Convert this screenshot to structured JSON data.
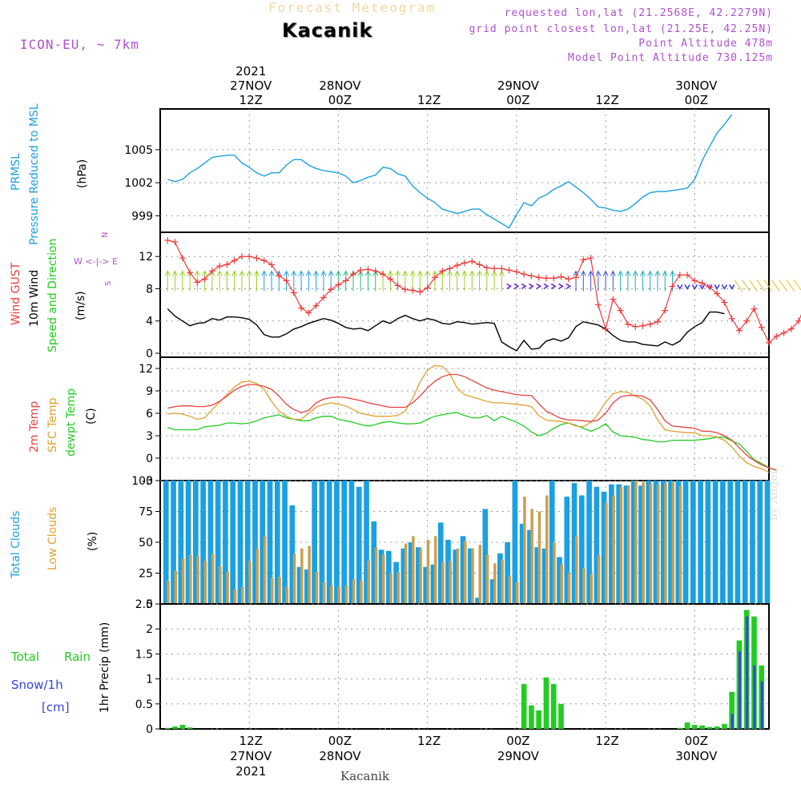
{
  "header": {
    "title": "Forecast Meteogram",
    "location": "Kacanik",
    "model": "ICON-EU, ~ 7km",
    "requested": "requested lon,lat (21.2568E, 42.2279N)",
    "grid_point": "grid point closest lon,lat (21.25E, 42.25N)",
    "point_altitude": "Point Altitude 478m",
    "model_altitude": "Model Point Altitude 730.125m"
  },
  "footer": {
    "location": "Kacanik",
    "credit": "by Angel"
  },
  "colors": {
    "pressure": "#1ba0e2",
    "gust": "#ee3b3b",
    "wind": "#000000",
    "temp": "#e84040",
    "sfc": "#e0a030",
    "dewpt": "#22cc22",
    "total_clouds": "#1ba0e2",
    "low_clouds": "#c8a050",
    "rain": "#22cc22",
    "snow": "#3344dd",
    "direction_label": "#b050d0"
  },
  "time_axis": {
    "top_labels": [
      {
        "h": 12,
        "lines": [
          "2021",
          "27NOV",
          "12Z"
        ]
      },
      {
        "h": 24,
        "lines": [
          "28NOV",
          "00Z"
        ]
      },
      {
        "h": 36,
        "lines": [
          "12Z"
        ]
      },
      {
        "h": 48,
        "lines": [
          "29NOV",
          "00Z"
        ]
      },
      {
        "h": 60,
        "lines": [
          "12Z"
        ]
      },
      {
        "h": 72,
        "lines": [
          "30NOV",
          "00Z"
        ]
      }
    ],
    "bottom_labels": [
      {
        "h": 12,
        "lines": [
          "12Z",
          "27NOV",
          "2021"
        ]
      },
      {
        "h": 24,
        "lines": [
          "00Z",
          "28NOV"
        ]
      },
      {
        "h": 36,
        "lines": [
          "12Z"
        ]
      },
      {
        "h": 48,
        "lines": [
          "00Z",
          "29NOV"
        ]
      },
      {
        "h": 60,
        "lines": [
          "12Z"
        ]
      },
      {
        "h": 72,
        "lines": [
          "00Z",
          "30NOV"
        ]
      }
    ]
  },
  "panel_labels": {
    "pressure": {
      "line1": "PRMSL",
      "line2": "Pressure Reduced to MSL",
      "unit": "(hPa)"
    },
    "wind": {
      "gust": "Wind GUST",
      "wind": "10m Wind",
      "dir": "Speed and Direction",
      "unit": "(m/s)",
      "compass_n": "N",
      "compass_s": "S",
      "compass_we": "W <-|-> E"
    },
    "temp": {
      "t2m": "2m Temp",
      "sfc": "SFC Temp",
      "dewpt": "dewpt Temp",
      "unit": "(C)"
    },
    "clouds": {
      "total": "Total Clouds",
      "low": "Low Clouds",
      "unit": "(%)"
    },
    "precip": {
      "total": "Total",
      "rain": "Rain",
      "snow": "Snow/1h",
      "cm": "[cm]",
      "axis": "1hr Precip (mm)"
    }
  },
  "chart_data": [
    {
      "type": "line",
      "name": "pressure",
      "ylim": [
        997.5,
        1008.7
      ],
      "yticks": [
        999,
        1002,
        1005
      ],
      "x_hours_start": 1,
      "values": [
        1002.3,
        1002.1,
        1002.3,
        1002.9,
        1003.3,
        1003.8,
        1004.3,
        1004.4,
        1004.5,
        1004.5,
        1003.8,
        1003.4,
        1002.9,
        1002.6,
        1002.9,
        1002.9,
        1003.6,
        1004.1,
        1004.1,
        1003.6,
        1003.3,
        1003.1,
        1003.0,
        1002.9,
        1002.6,
        1002.0,
        1002.2,
        1002.5,
        1002.7,
        1003.4,
        1003.3,
        1002.8,
        1002.6,
        1001.7,
        1001.1,
        1000.6,
        1000.2,
        999.6,
        999.4,
        999.2,
        999.4,
        999.6,
        999.6,
        999.1,
        998.7,
        998.3,
        997.9,
        999.1,
        1000.2,
        999.9,
        1000.6,
        1000.9,
        1001.4,
        1001.7,
        1002.1,
        1001.6,
        1001.1,
        1000.5,
        999.8,
        999.7,
        999.5,
        999.4,
        999.6,
        1000.1,
        1000.7,
        1001.1,
        1001.2,
        1001.2,
        1001.3,
        1001.4,
        1001.5,
        1002.3,
        1004.0,
        1005.3,
        1006.5,
        1007.3,
        1008.2
      ]
    },
    {
      "type": "line",
      "name": "wind",
      "ylim": [
        -0.5,
        15.0
      ],
      "yticks": [
        0,
        4,
        8,
        12
      ],
      "x_hours_start": 1,
      "gust": [
        14.0,
        13.8,
        11.8,
        10.0,
        8.8,
        9.2,
        10.2,
        10.8,
        11.0,
        11.5,
        12.0,
        12.0,
        11.8,
        11.5,
        11.0,
        9.6,
        9.0,
        7.5,
        5.6,
        5.0,
        5.9,
        6.9,
        7.9,
        8.5,
        9.0,
        9.8,
        10.3,
        10.4,
        10.2,
        9.8,
        9.2,
        8.4,
        7.9,
        7.8,
        7.6,
        8.1,
        9.4,
        10.2,
        10.5,
        10.9,
        11.2,
        11.4,
        11.0,
        10.6,
        10.5,
        10.5,
        10.3,
        10.1,
        9.8,
        9.6,
        9.4,
        9.3,
        9.3,
        9.5,
        9.2,
        9.4,
        11.6,
        11.8,
        6.0,
        3.0,
        6.7,
        5.3,
        3.6,
        3.3,
        3.4,
        3.6,
        3.9,
        5.3,
        8.3,
        9.7,
        9.7,
        9.0,
        8.7,
        8.2,
        7.4,
        6.3,
        4.3,
        2.8,
        4.0,
        5.5,
        3.2,
        1.3,
        2.1,
        2.5,
        3.0,
        4.0,
        6.2,
        7.4,
        8.0,
        11.8,
        12.0,
        11.7
      ],
      "wind": [
        5.5,
        4.6,
        4.0,
        3.4,
        3.7,
        3.8,
        4.3,
        4.1,
        4.5,
        4.5,
        4.4,
        4.2,
        3.5,
        2.3,
        2.0,
        2.0,
        2.4,
        3.0,
        3.3,
        3.7,
        4.0,
        4.3,
        4.1,
        3.7,
        3.2,
        3.0,
        3.1,
        2.8,
        3.4,
        4.0,
        3.7,
        4.3,
        4.7,
        4.3,
        4.0,
        4.3,
        4.1,
        3.7,
        3.6,
        3.9,
        3.8,
        3.6,
        3.7,
        3.8,
        3.7,
        1.4,
        0.8,
        0.3,
        1.6,
        0.5,
        0.6,
        1.5,
        1.8,
        1.5,
        1.9,
        3.3,
        3.9,
        3.7,
        3.5,
        3.0,
        2.2,
        1.6,
        1.4,
        1.4,
        1.1,
        1.0,
        0.9,
        1.4,
        1.0,
        1.5,
        2.6,
        3.3,
        3.8,
        5.1,
        5.1,
        4.9
      ],
      "direction_arrows": "yes"
    },
    {
      "type": "line",
      "name": "temperature",
      "ylim": [
        -3,
        13.5
      ],
      "yticks": [
        -3,
        0,
        3,
        6,
        9,
        12
      ],
      "x_hours_start": 1,
      "t2m": [
        6.7,
        6.9,
        7.0,
        7.0,
        6.9,
        6.9,
        7.1,
        7.6,
        8.3,
        9.1,
        9.6,
        9.9,
        9.8,
        9.6,
        9.2,
        8.3,
        7.2,
        6.5,
        6.1,
        6.4,
        7.4,
        7.9,
        8.1,
        8.2,
        8.1,
        7.9,
        7.7,
        7.4,
        7.2,
        7.0,
        6.8,
        6.8,
        6.8,
        7.4,
        8.3,
        9.4,
        10.3,
        10.9,
        11.2,
        11.2,
        10.9,
        10.4,
        9.9,
        9.4,
        9.1,
        8.9,
        8.7,
        8.5,
        8.4,
        8.4,
        7.3,
        6.3,
        5.8,
        5.3,
        5.1,
        5.1,
        5.0,
        4.9,
        5.1,
        6.0,
        7.4,
        8.2,
        8.4,
        8.4,
        8.3,
        7.8,
        6.5,
        5.0,
        4.3,
        4.2,
        4.1,
        4.0,
        3.6,
        3.6,
        3.4,
        3.0,
        2.4,
        1.4,
        0.4,
        -0.3,
        -0.9,
        -1.3,
        -1.6
      ],
      "sfc": [
        5.9,
        6.0,
        5.9,
        5.6,
        5.2,
        5.4,
        6.5,
        7.5,
        8.5,
        9.5,
        10.2,
        10.3,
        10.0,
        9.2,
        7.6,
        6.3,
        5.6,
        5.2,
        5.2,
        6.0,
        6.8,
        7.2,
        7.4,
        7.2,
        7.0,
        6.5,
        6.0,
        5.8,
        5.6,
        5.6,
        5.6,
        5.7,
        6.3,
        8.0,
        10.2,
        11.8,
        12.4,
        12.3,
        11.3,
        9.4,
        8.5,
        8.2,
        7.9,
        7.6,
        7.4,
        7.4,
        7.3,
        7.2,
        7.1,
        6.9,
        5.7,
        5.1,
        5.0,
        4.9,
        4.7,
        4.3,
        4.2,
        4.8,
        5.9,
        7.5,
        8.6,
        8.9,
        8.8,
        8.3,
        7.9,
        7.0,
        5.1,
        3.8,
        3.6,
        3.5,
        3.4,
        3.4,
        3.0,
        3.0,
        2.8,
        2.4,
        1.5,
        0.3,
        -0.6,
        -1.1,
        -1.4,
        -1.9
      ],
      "dewpt": [
        4.1,
        3.8,
        3.8,
        3.8,
        3.8,
        4.2,
        4.3,
        4.4,
        4.7,
        4.7,
        4.6,
        4.7,
        5.0,
        5.4,
        5.6,
        5.8,
        5.4,
        5.2,
        5.0,
        5.0,
        5.4,
        5.6,
        5.6,
        5.2,
        5.0,
        4.8,
        4.5,
        4.3,
        4.5,
        4.8,
        4.9,
        4.7,
        4.6,
        4.6,
        4.7,
        5.2,
        5.6,
        5.8,
        6.0,
        6.1,
        5.7,
        5.4,
        5.4,
        5.7,
        5.0,
        5.6,
        5.2,
        4.8,
        4.3,
        3.5,
        3.0,
        3.3,
        4.0,
        4.5,
        4.7,
        4.4,
        4.0,
        3.6,
        4.0,
        4.6,
        3.5,
        3.0,
        2.9,
        2.8,
        2.5,
        2.4,
        2.2,
        2.2,
        2.4,
        2.4,
        2.4,
        2.4,
        2.5,
        2.6,
        2.8,
        2.8,
        2.3,
        1.9,
        0.9,
        -0.2,
        -0.7,
        -1.3,
        -1.6
      ]
    },
    {
      "type": "bar",
      "name": "clouds",
      "ylim": [
        0,
        100
      ],
      "yticks": [
        0,
        25,
        50,
        75,
        100
      ],
      "x_hours_start": 1,
      "total": [
        100,
        100,
        100,
        100,
        100,
        100,
        100,
        100,
        100,
        100,
        100,
        100,
        100,
        100,
        100,
        100,
        100,
        80,
        30,
        28,
        100,
        100,
        100,
        100,
        100,
        100,
        95,
        100,
        67,
        44,
        43,
        34,
        45,
        50,
        46,
        30,
        32,
        66,
        52,
        44,
        55,
        45,
        5,
        77,
        20,
        41,
        50,
        100,
        65,
        60,
        46,
        45,
        100,
        38,
        87,
        98,
        88,
        100,
        95,
        91,
        97,
        97,
        96,
        100,
        96,
        100,
        100,
        100,
        100,
        100,
        100,
        100,
        100,
        100,
        100,
        100,
        100,
        100,
        100,
        100,
        100,
        100,
        100,
        100,
        100,
        100,
        100,
        100,
        100,
        100,
        100,
        100,
        100,
        100,
        100,
        100,
        100
      ],
      "low": [
        19,
        27,
        37,
        40,
        39,
        35,
        41,
        31,
        26,
        12,
        14,
        35,
        45,
        55,
        21,
        22,
        14,
        41,
        45,
        47,
        26,
        18,
        15,
        14,
        15,
        20,
        19,
        35,
        46,
        40,
        25,
        26,
        49,
        55,
        45,
        52,
        55,
        34,
        35,
        45,
        51,
        45,
        48,
        40,
        33,
        36,
        23,
        18,
        87,
        77,
        75,
        88,
        50,
        32,
        25,
        55,
        29,
        24,
        40,
        82,
        88,
        95,
        96,
        100,
        99,
        98,
        97,
        98,
        99,
        96
      ],
      "low_offset": 0
    },
    {
      "type": "bar",
      "name": "precipitation",
      "ylim": [
        0,
        2.5
      ],
      "yticks": [
        0,
        0.5,
        1,
        1.5,
        2,
        2.5
      ],
      "x_hours_start": 1,
      "rain": [
        0.02,
        0.05,
        0.08,
        0.03,
        0,
        0,
        0,
        0,
        0,
        0,
        0,
        0,
        0,
        0,
        0,
        0,
        0,
        0,
        0,
        0,
        0,
        0,
        0,
        0,
        0,
        0,
        0,
        0,
        0,
        0,
        0,
        0,
        0,
        0,
        0,
        0,
        0,
        0,
        0,
        0,
        0,
        0,
        0,
        0,
        0,
        0,
        0,
        0,
        0.9,
        0.47,
        0.37,
        1.03,
        0.9,
        0.5,
        0,
        0,
        0,
        0,
        0,
        0,
        0,
        0,
        0,
        0,
        0,
        0,
        0,
        0,
        0,
        0.02,
        0.13,
        0.08,
        0.07,
        0.04,
        0.05,
        0.1,
        0.74,
        1.77,
        2.38,
        2.25,
        1.27,
        0
      ],
      "snow": [
        0,
        0,
        0,
        0,
        0,
        0,
        0,
        0,
        0,
        0,
        0,
        0,
        0,
        0,
        0,
        0,
        0,
        0,
        0,
        0,
        0,
        0,
        0,
        0,
        0,
        0,
        0,
        0,
        0,
        0,
        0,
        0,
        0,
        0,
        0,
        0,
        0,
        0,
        0,
        0,
        0,
        0,
        0,
        0,
        0,
        0,
        0,
        0,
        0,
        0,
        0,
        0,
        0,
        0,
        0,
        0,
        0,
        0,
        0,
        0,
        0,
        0,
        0,
        0,
        0,
        0,
        0,
        0,
        0,
        0,
        0,
        0,
        0,
        0,
        0,
        0,
        0.3,
        1.55,
        2.25,
        1.27,
        0.95
      ]
    }
  ]
}
